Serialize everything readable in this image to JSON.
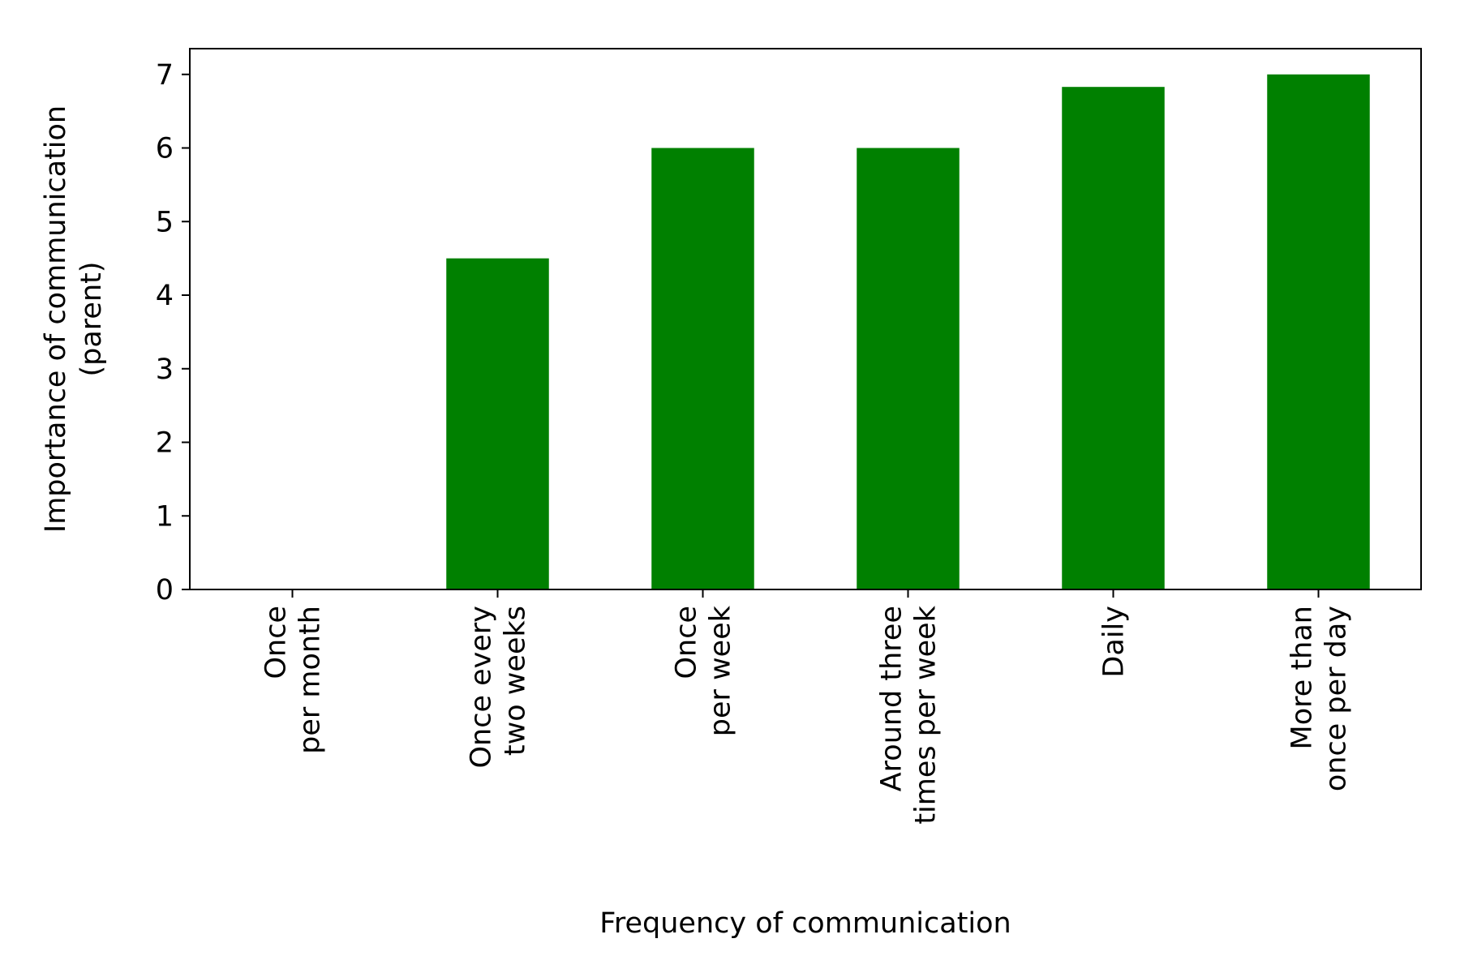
{
  "chart_data": {
    "type": "bar",
    "categories": [
      [
        "Once",
        "per month"
      ],
      [
        "Once every",
        "two weeks"
      ],
      [
        "Once",
        "per week"
      ],
      [
        "Around three",
        "times per week"
      ],
      [
        "Daily"
      ],
      [
        "More than",
        "once per day"
      ]
    ],
    "values": [
      0,
      4.5,
      6,
      6,
      6.83,
      7
    ],
    "xlabel": "Frequency of communication",
    "ylabel": [
      "Importance of communication",
      "(parent)"
    ],
    "ylim": [
      0,
      7.35
    ],
    "yticks": [
      "0",
      "1",
      "2",
      "3",
      "4",
      "5",
      "6",
      "7"
    ],
    "grid": false,
    "bar_color": "#008000"
  }
}
